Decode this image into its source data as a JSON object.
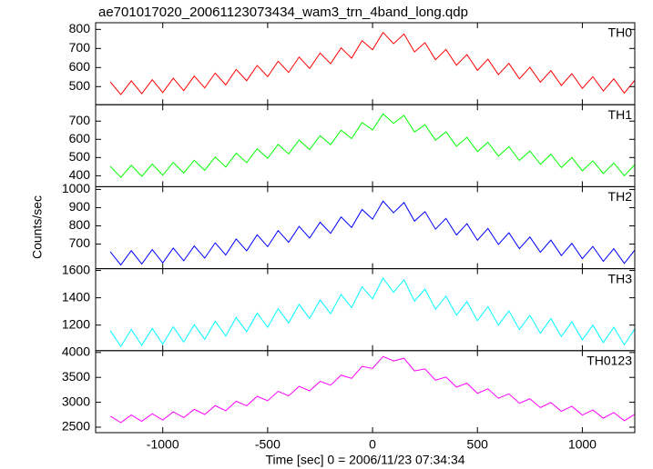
{
  "title": "ae701017020_20061123073434_wam3_trn_4band_long.qdp",
  "xlabel": "Time [sec] 0 = 2006/11/23 07:34:34",
  "ylabel": "Counts/sec",
  "chart_data": [
    {
      "type": "line",
      "xlim": [
        -1320,
        1250
      ],
      "xticks": [
        -1000,
        -500,
        0,
        500,
        1000
      ],
      "ylim": [
        405,
        835
      ],
      "yticks": [
        500,
        600,
        700,
        800
      ],
      "x": [
        -1250,
        -1200,
        -1150,
        -1100,
        -1050,
        -1000,
        -950,
        -900,
        -850,
        -800,
        -750,
        -700,
        -650,
        -600,
        -550,
        -500,
        -450,
        -400,
        -350,
        -300,
        -250,
        -200,
        -150,
        -100,
        -50,
        0,
        50,
        100,
        150,
        200,
        250,
        300,
        350,
        400,
        450,
        500,
        550,
        600,
        650,
        700,
        750,
        800,
        850,
        900,
        950,
        1000,
        1050,
        1100,
        1150,
        1200,
        1250
      ],
      "series": [
        {
          "name": "TH0",
          "color": "#ff0000",
          "values": [
            525,
            458,
            530,
            463,
            536,
            469,
            544,
            479,
            555,
            493,
            571,
            509,
            590,
            531,
            611,
            552,
            633,
            574,
            655,
            595,
            676,
            620,
            703,
            649,
            741,
            693,
            784,
            725,
            776,
            682,
            730,
            641,
            695,
            612,
            668,
            585,
            644,
            563,
            622,
            541,
            601,
            523,
            584,
            506,
            568,
            490,
            552,
            477,
            541,
            466,
            533
          ]
        }
      ]
    },
    {
      "type": "line",
      "xlim": [
        -1320,
        1250
      ],
      "xticks": [
        -1000,
        -500,
        0,
        500,
        1000
      ],
      "ylim": [
        340,
        790
      ],
      "yticks": [
        400,
        500,
        600,
        700
      ],
      "x": [
        -1250,
        -1200,
        -1150,
        -1100,
        -1050,
        -1000,
        -950,
        -900,
        -850,
        -800,
        -750,
        -700,
        -650,
        -600,
        -550,
        -500,
        -450,
        -400,
        -350,
        -300,
        -250,
        -200,
        -150,
        -100,
        -50,
        0,
        50,
        100,
        150,
        200,
        250,
        300,
        350,
        400,
        450,
        500,
        550,
        600,
        650,
        700,
        750,
        800,
        850,
        900,
        950,
        1000,
        1050,
        1100,
        1150,
        1200,
        1250
      ],
      "series": [
        {
          "name": "TH1",
          "color": "#00ff00",
          "values": [
            452,
            391,
            458,
            397,
            464,
            403,
            473,
            415,
            485,
            430,
            503,
            448,
            524,
            472,
            548,
            496,
            572,
            520,
            596,
            544,
            620,
            571,
            650,
            604,
            692,
            652,
            740,
            688,
            731,
            640,
            680,
            595,
            641,
            562,
            611,
            532,
            584,
            508,
            560,
            484,
            536,
            463,
            518,
            445,
            500,
            427,
            482,
            412,
            470,
            400,
            461
          ]
        }
      ]
    },
    {
      "type": "line",
      "xlim": [
        -1320,
        1250
      ],
      "xticks": [
        -1000,
        -500,
        0,
        500,
        1000
      ],
      "ylim": [
        565,
        1015
      ],
      "yticks": [
        700,
        800,
        900,
        1000
      ],
      "x": [
        -1250,
        -1200,
        -1150,
        -1100,
        -1050,
        -1000,
        -950,
        -900,
        -850,
        -800,
        -750,
        -700,
        -650,
        -600,
        -550,
        -500,
        -450,
        -400,
        -350,
        -300,
        -250,
        -200,
        -150,
        -100,
        -50,
        0,
        50,
        100,
        150,
        200,
        250,
        300,
        350,
        400,
        450,
        500,
        550,
        600,
        650,
        700,
        750,
        800,
        850,
        900,
        950,
        1000,
        1050,
        1100,
        1150,
        1200,
        1250
      ],
      "series": [
        {
          "name": "TH2",
          "color": "#0000ff",
          "values": [
            658,
            585,
            664,
            591,
            670,
            597,
            678,
            608,
            690,
            623,
            707,
            640,
            728,
            663,
            751,
            686,
            774,
            710,
            797,
            733,
            820,
            759,
            849,
            791,
            890,
            837,
            936,
            872,
            928,
            826,
            878,
            782,
            841,
            750,
            812,
            721,
            786,
            698,
            762,
            675,
            739,
            655,
            722,
            637,
            704,
            620,
            687,
            605,
            675,
            594,
            667
          ]
        }
      ]
    },
    {
      "type": "line",
      "xlim": [
        -1320,
        1250
      ],
      "xticks": [
        -1000,
        -500,
        0,
        500,
        1000
      ],
      "ylim": [
        1013,
        1613
      ],
      "yticks": [
        1200,
        1400,
        1600
      ],
      "x": [
        -1250,
        -1200,
        -1150,
        -1100,
        -1050,
        -1000,
        -950,
        -900,
        -850,
        -800,
        -750,
        -700,
        -650,
        -600,
        -550,
        -500,
        -450,
        -400,
        -350,
        -300,
        -250,
        -200,
        -150,
        -100,
        -50,
        0,
        50,
        100,
        150,
        200,
        250,
        300,
        350,
        400,
        450,
        500,
        550,
        600,
        650,
        700,
        750,
        800,
        850,
        900,
        950,
        1000,
        1050,
        1100,
        1150,
        1200,
        1250
      ],
      "series": [
        {
          "name": "TH3",
          "color": "#00ffff",
          "values": [
            1160,
            1044,
            1168,
            1052,
            1176,
            1060,
            1188,
            1076,
            1204,
            1096,
            1228,
            1120,
            1256,
            1152,
            1288,
            1184,
            1320,
            1216,
            1352,
            1248,
            1384,
            1284,
            1424,
            1328,
            1480,
            1392,
            1544,
            1440,
            1532,
            1376,
            1464,
            1316,
            1412,
            1272,
            1372,
            1232,
            1336,
            1200,
            1304,
            1168,
            1272,
            1140,
            1248,
            1116,
            1224,
            1092,
            1200,
            1072,
            1184,
            1056,
            1172
          ]
        }
      ]
    },
    {
      "type": "line",
      "xlim": [
        -1320,
        1250
      ],
      "xticks": [
        -1000,
        -500,
        0,
        500,
        1000
      ],
      "ylim": [
        2390,
        4037
      ],
      "yticks": [
        2500,
        3000,
        3500,
        4000
      ],
      "x": [
        -1250,
        -1200,
        -1150,
        -1100,
        -1050,
        -1000,
        -950,
        -900,
        -850,
        -800,
        -750,
        -700,
        -650,
        -600,
        -550,
        -500,
        -450,
        -400,
        -350,
        -300,
        -250,
        -200,
        -150,
        -100,
        -50,
        0,
        50,
        100,
        150,
        200,
        250,
        300,
        350,
        400,
        450,
        500,
        550,
        600,
        650,
        700,
        750,
        800,
        850,
        900,
        950,
        1000,
        1050,
        1100,
        1150,
        1200,
        1250
      ],
      "series": [
        {
          "name": "TH0123",
          "color": "#ff00ff",
          "values": [
            2720,
            2593,
            2745,
            2618,
            2770,
            2643,
            2808,
            2693,
            2858,
            2755,
            2933,
            2830,
            3020,
            2930,
            3120,
            3030,
            3220,
            3130,
            3320,
            3230,
            3420,
            3343,
            3545,
            3480,
            3720,
            3680,
            3920,
            3830,
            3883,
            3630,
            3670,
            3443,
            3508,
            3305,
            3383,
            3180,
            3270,
            3080,
            3170,
            2980,
            3070,
            2893,
            2995,
            2818,
            2920,
            2743,
            2845,
            2680,
            2795,
            2630,
            2758
          ]
        }
      ]
    }
  ]
}
